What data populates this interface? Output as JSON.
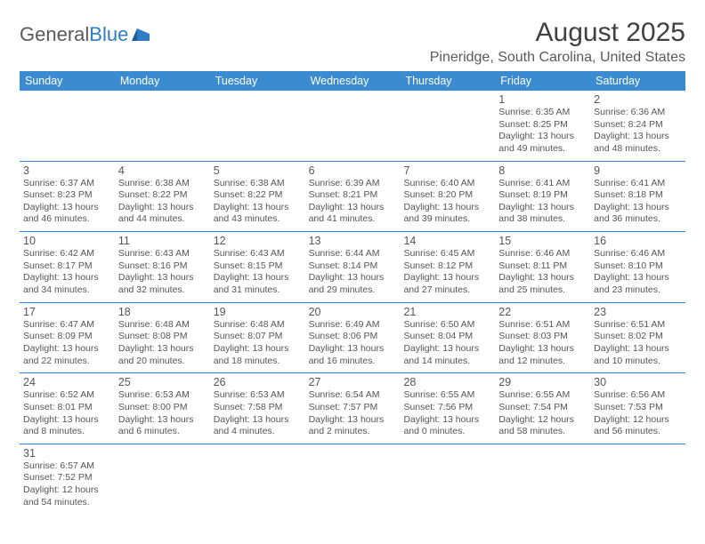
{
  "logo": {
    "text1": "General",
    "text2": "Blue"
  },
  "title": "August 2025",
  "location": "Pineridge, South Carolina, United States",
  "colors": {
    "header_bg": "#3b8bd1",
    "header_text": "#ffffff",
    "text": "#555555",
    "rule": "#3b8bd1",
    "logo_gray": "#5a5a5a",
    "logo_blue": "#2f7dc4"
  },
  "day_headers": [
    "Sunday",
    "Monday",
    "Tuesday",
    "Wednesday",
    "Thursday",
    "Friday",
    "Saturday"
  ],
  "weeks": [
    [
      null,
      null,
      null,
      null,
      null,
      {
        "n": "1",
        "sr": "Sunrise: 6:35 AM",
        "ss": "Sunset: 8:25 PM",
        "d1": "Daylight: 13 hours",
        "d2": "and 49 minutes."
      },
      {
        "n": "2",
        "sr": "Sunrise: 6:36 AM",
        "ss": "Sunset: 8:24 PM",
        "d1": "Daylight: 13 hours",
        "d2": "and 48 minutes."
      }
    ],
    [
      {
        "n": "3",
        "sr": "Sunrise: 6:37 AM",
        "ss": "Sunset: 8:23 PM",
        "d1": "Daylight: 13 hours",
        "d2": "and 46 minutes."
      },
      {
        "n": "4",
        "sr": "Sunrise: 6:38 AM",
        "ss": "Sunset: 8:22 PM",
        "d1": "Daylight: 13 hours",
        "d2": "and 44 minutes."
      },
      {
        "n": "5",
        "sr": "Sunrise: 6:38 AM",
        "ss": "Sunset: 8:22 PM",
        "d1": "Daylight: 13 hours",
        "d2": "and 43 minutes."
      },
      {
        "n": "6",
        "sr": "Sunrise: 6:39 AM",
        "ss": "Sunset: 8:21 PM",
        "d1": "Daylight: 13 hours",
        "d2": "and 41 minutes."
      },
      {
        "n": "7",
        "sr": "Sunrise: 6:40 AM",
        "ss": "Sunset: 8:20 PM",
        "d1": "Daylight: 13 hours",
        "d2": "and 39 minutes."
      },
      {
        "n": "8",
        "sr": "Sunrise: 6:41 AM",
        "ss": "Sunset: 8:19 PM",
        "d1": "Daylight: 13 hours",
        "d2": "and 38 minutes."
      },
      {
        "n": "9",
        "sr": "Sunrise: 6:41 AM",
        "ss": "Sunset: 8:18 PM",
        "d1": "Daylight: 13 hours",
        "d2": "and 36 minutes."
      }
    ],
    [
      {
        "n": "10",
        "sr": "Sunrise: 6:42 AM",
        "ss": "Sunset: 8:17 PM",
        "d1": "Daylight: 13 hours",
        "d2": "and 34 minutes."
      },
      {
        "n": "11",
        "sr": "Sunrise: 6:43 AM",
        "ss": "Sunset: 8:16 PM",
        "d1": "Daylight: 13 hours",
        "d2": "and 32 minutes."
      },
      {
        "n": "12",
        "sr": "Sunrise: 6:43 AM",
        "ss": "Sunset: 8:15 PM",
        "d1": "Daylight: 13 hours",
        "d2": "and 31 minutes."
      },
      {
        "n": "13",
        "sr": "Sunrise: 6:44 AM",
        "ss": "Sunset: 8:14 PM",
        "d1": "Daylight: 13 hours",
        "d2": "and 29 minutes."
      },
      {
        "n": "14",
        "sr": "Sunrise: 6:45 AM",
        "ss": "Sunset: 8:12 PM",
        "d1": "Daylight: 13 hours",
        "d2": "and 27 minutes."
      },
      {
        "n": "15",
        "sr": "Sunrise: 6:46 AM",
        "ss": "Sunset: 8:11 PM",
        "d1": "Daylight: 13 hours",
        "d2": "and 25 minutes."
      },
      {
        "n": "16",
        "sr": "Sunrise: 6:46 AM",
        "ss": "Sunset: 8:10 PM",
        "d1": "Daylight: 13 hours",
        "d2": "and 23 minutes."
      }
    ],
    [
      {
        "n": "17",
        "sr": "Sunrise: 6:47 AM",
        "ss": "Sunset: 8:09 PM",
        "d1": "Daylight: 13 hours",
        "d2": "and 22 minutes."
      },
      {
        "n": "18",
        "sr": "Sunrise: 6:48 AM",
        "ss": "Sunset: 8:08 PM",
        "d1": "Daylight: 13 hours",
        "d2": "and 20 minutes."
      },
      {
        "n": "19",
        "sr": "Sunrise: 6:48 AM",
        "ss": "Sunset: 8:07 PM",
        "d1": "Daylight: 13 hours",
        "d2": "and 18 minutes."
      },
      {
        "n": "20",
        "sr": "Sunrise: 6:49 AM",
        "ss": "Sunset: 8:06 PM",
        "d1": "Daylight: 13 hours",
        "d2": "and 16 minutes."
      },
      {
        "n": "21",
        "sr": "Sunrise: 6:50 AM",
        "ss": "Sunset: 8:04 PM",
        "d1": "Daylight: 13 hours",
        "d2": "and 14 minutes."
      },
      {
        "n": "22",
        "sr": "Sunrise: 6:51 AM",
        "ss": "Sunset: 8:03 PM",
        "d1": "Daylight: 13 hours",
        "d2": "and 12 minutes."
      },
      {
        "n": "23",
        "sr": "Sunrise: 6:51 AM",
        "ss": "Sunset: 8:02 PM",
        "d1": "Daylight: 13 hours",
        "d2": "and 10 minutes."
      }
    ],
    [
      {
        "n": "24",
        "sr": "Sunrise: 6:52 AM",
        "ss": "Sunset: 8:01 PM",
        "d1": "Daylight: 13 hours",
        "d2": "and 8 minutes."
      },
      {
        "n": "25",
        "sr": "Sunrise: 6:53 AM",
        "ss": "Sunset: 8:00 PM",
        "d1": "Daylight: 13 hours",
        "d2": "and 6 minutes."
      },
      {
        "n": "26",
        "sr": "Sunrise: 6:53 AM",
        "ss": "Sunset: 7:58 PM",
        "d1": "Daylight: 13 hours",
        "d2": "and 4 minutes."
      },
      {
        "n": "27",
        "sr": "Sunrise: 6:54 AM",
        "ss": "Sunset: 7:57 PM",
        "d1": "Daylight: 13 hours",
        "d2": "and 2 minutes."
      },
      {
        "n": "28",
        "sr": "Sunrise: 6:55 AM",
        "ss": "Sunset: 7:56 PM",
        "d1": "Daylight: 13 hours",
        "d2": "and 0 minutes."
      },
      {
        "n": "29",
        "sr": "Sunrise: 6:55 AM",
        "ss": "Sunset: 7:54 PM",
        "d1": "Daylight: 12 hours",
        "d2": "and 58 minutes."
      },
      {
        "n": "30",
        "sr": "Sunrise: 6:56 AM",
        "ss": "Sunset: 7:53 PM",
        "d1": "Daylight: 12 hours",
        "d2": "and 56 minutes."
      }
    ],
    [
      {
        "n": "31",
        "sr": "Sunrise: 6:57 AM",
        "ss": "Sunset: 7:52 PM",
        "d1": "Daylight: 12 hours",
        "d2": "and 54 minutes."
      },
      null,
      null,
      null,
      null,
      null,
      null
    ]
  ]
}
